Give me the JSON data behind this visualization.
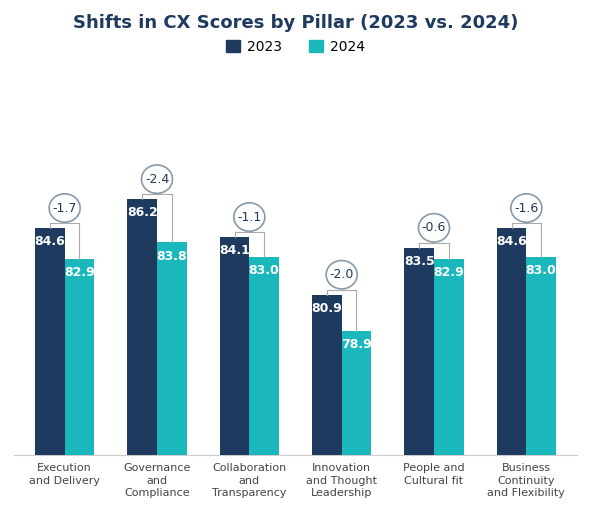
{
  "title": "Shifts in CX Scores by Pillar (2023 vs. 2024)",
  "categories": [
    "Execution\nand Delivery",
    "Governance\nand\nCompliance",
    "Collaboration\nand\nTransparency",
    "Innovation\nand Thought\nLeadership",
    "People and\nCultural fit",
    "Business\nContinuity\nand Flexibility"
  ],
  "values_2023": [
    84.6,
    86.2,
    84.1,
    80.9,
    83.5,
    84.6
  ],
  "values_2024": [
    82.9,
    83.8,
    83.0,
    78.9,
    82.9,
    83.0
  ],
  "deltas": [
    "-1.7",
    "-2.4",
    "-1.1",
    "-2.0",
    "-0.6",
    "-1.6"
  ],
  "color_2023": "#1e3a5f",
  "color_2024": "#1ab8bc",
  "bar_width": 0.32,
  "ylim_min": 72,
  "ylim_max": 93,
  "title_fontsize": 13,
  "legend_fontsize": 10,
  "bar_label_fontsize": 9,
  "delta_fontsize": 9,
  "axis_label_fontsize": 8,
  "background_color": "#ffffff",
  "bracket_color": "#aaaaaa",
  "oval_edge_color": "#8899aa"
}
